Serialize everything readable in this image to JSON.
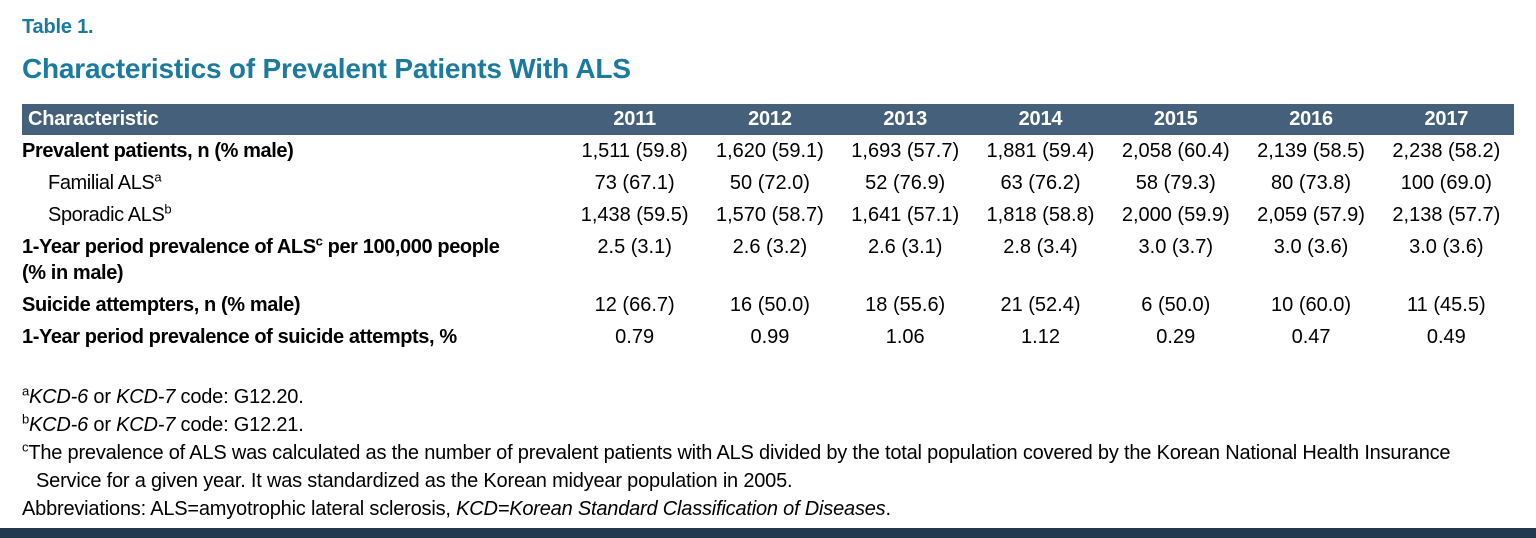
{
  "colors": {
    "accent_teal": "#1B7A9E",
    "header_bg": "#44607A",
    "footer_bar": "#20394E",
    "header_text": "#FFFFFF",
    "body_text": "#000000"
  },
  "title": {
    "label": "Table 1.",
    "heading": "Characteristics of Prevalent Patients With ALS"
  },
  "table": {
    "header": [
      "Characteristic",
      "2011",
      "2012",
      "2013",
      "2014",
      "2015",
      "2016",
      "2017"
    ],
    "rows": [
      {
        "name": "prevalent-patients",
        "bold": true,
        "indent": false,
        "label": [
          [
            {
              "t": "Prevalent patients, n (% male)"
            }
          ]
        ],
        "values": [
          "1,511 (59.8)",
          "1,620 (59.1)",
          "1,693 (57.7)",
          "1,881 (59.4)",
          "2,058 (60.4)",
          "2,139 (58.5)",
          "2,238 (58.2)"
        ]
      },
      {
        "name": "familial-als",
        "bold": false,
        "indent": true,
        "label": [
          [
            {
              "t": "Familial ALS"
            },
            {
              "t": "a",
              "sup": true
            }
          ]
        ],
        "values": [
          "73 (67.1)",
          "50 (72.0)",
          "52 (76.9)",
          "63 (76.2)",
          "58 (79.3)",
          "80 (73.8)",
          "100 (69.0)"
        ]
      },
      {
        "name": "sporadic-als",
        "bold": false,
        "indent": true,
        "label": [
          [
            {
              "t": "Sporadic ALS"
            },
            {
              "t": "b",
              "sup": true
            }
          ]
        ],
        "values": [
          "1,438 (59.5)",
          "1,570 (58.7)",
          "1,641 (57.1)",
          "1,818 (58.8)",
          "2,000 (59.9)",
          "2,059 (57.9)",
          "2,138 (57.7)"
        ]
      },
      {
        "name": "period-prevalence-als",
        "bold": true,
        "indent": false,
        "label": [
          [
            {
              "t": "1-Year period prevalence of ALS"
            },
            {
              "t": "c",
              "sup": true
            },
            {
              "t": " per 100,000 people"
            }
          ],
          [
            {
              "t": "(% in male)"
            }
          ]
        ],
        "values": [
          "2.5 (3.1)",
          "2.6 (3.2)",
          "2.6 (3.1)",
          "2.8 (3.4)",
          "3.0 (3.7)",
          "3.0 (3.6)",
          "3.0 (3.6)"
        ]
      },
      {
        "name": "suicide-attempters",
        "bold": true,
        "indent": false,
        "label": [
          [
            {
              "t": "Suicide attempters, n (% male)"
            }
          ]
        ],
        "values": [
          "12 (66.7)",
          "16 (50.0)",
          "18 (55.6)",
          "21 (52.4)",
          "6 (50.0)",
          "10 (60.0)",
          "11 (45.5)"
        ]
      },
      {
        "name": "period-prevalence-suicide",
        "bold": true,
        "indent": false,
        "label": [
          [
            {
              "t": "1-Year period prevalence of suicide attempts, %"
            }
          ]
        ],
        "values": [
          "0.79",
          "0.99",
          "1.06",
          "1.12",
          "0.29",
          "0.47",
          "0.49"
        ]
      }
    ]
  },
  "footnotes": [
    {
      "name": "footnote-a",
      "segments": [
        {
          "t": "a",
          "sup": true
        },
        {
          "t": "KCD-6",
          "italic": true
        },
        {
          "t": " or "
        },
        {
          "t": "KCD-7",
          "italic": true
        },
        {
          "t": " code: G12.20."
        }
      ]
    },
    {
      "name": "footnote-b",
      "segments": [
        {
          "t": "b",
          "sup": true
        },
        {
          "t": "KCD-6",
          "italic": true
        },
        {
          "t": " or "
        },
        {
          "t": "KCD-7",
          "italic": true
        },
        {
          "t": " code: G12.21."
        }
      ]
    },
    {
      "name": "footnote-c",
      "segments": [
        {
          "t": "c",
          "sup": true
        },
        {
          "t": "The prevalence of ALS was calculated as the number of prevalent patients with ALS divided by the total population covered by the Korean National Health Insurance Service for a given year. It was standardized as the Korean midyear population in 2005."
        }
      ]
    },
    {
      "name": "footnote-abbreviations",
      "segments": [
        {
          "t": "Abbreviations: ALS=amyotrophic lateral sclerosis, "
        },
        {
          "t": "KCD=Korean Standard Classification of Diseases",
          "italic": true
        },
        {
          "t": "."
        }
      ]
    }
  ]
}
